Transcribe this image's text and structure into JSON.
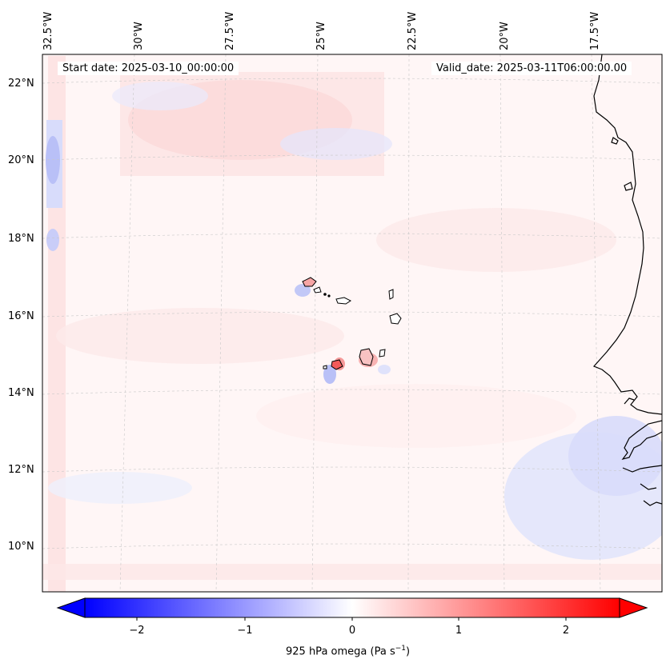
{
  "map": {
    "start_label": "Start date: 2025-03-10_00:00:00",
    "valid_label": "Valid_date: 2025-03-11T06:00:00.00",
    "lon_labels": [
      "32.5°W",
      "30°W",
      "27.5°W",
      "25°W",
      "22.5°W",
      "20°W",
      "17.5°W"
    ],
    "lat_labels": [
      "22°N",
      "20°N",
      "18°N",
      "16°N",
      "14°N",
      "12°N",
      "10°N"
    ],
    "field": "925 hPa omega",
    "field_unit": "Pa s",
    "field_unit_exp": "−1",
    "colormap": "bwr",
    "colors": {
      "negative": "#0000ff",
      "zero": "#ffffff",
      "positive": "#ff0000",
      "coast": "#000000",
      "grid": "#c8c8c8"
    }
  },
  "colorbar": {
    "ticks": [
      "−2",
      "−1",
      "0",
      "1",
      "2"
    ],
    "tick_values": [
      -2,
      -1,
      0,
      1,
      2
    ],
    "range": [
      -2.6,
      2.6
    ],
    "extend": "both"
  }
}
